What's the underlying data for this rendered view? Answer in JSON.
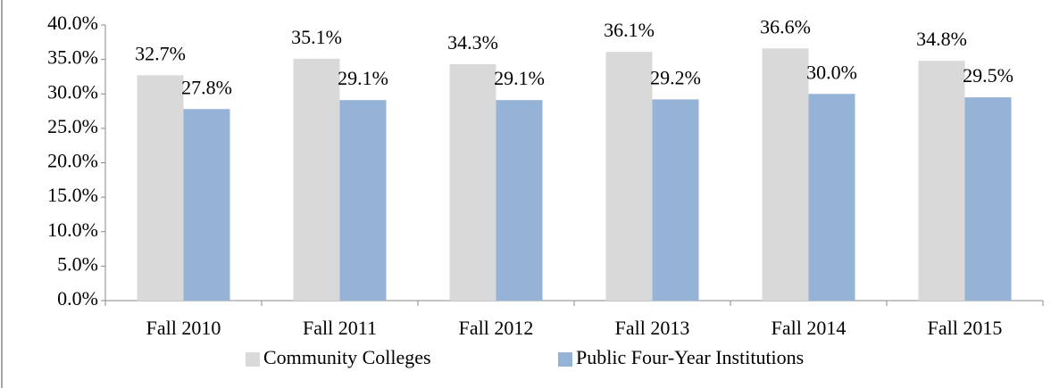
{
  "chart_data": {
    "type": "bar",
    "categories": [
      "Fall 2010",
      "Fall 2011",
      "Fall 2012",
      "Fall 2013",
      "Fall 2014",
      "Fall 2015"
    ],
    "series": [
      {
        "name": "Community Colleges",
        "color": "#d9d9d9",
        "values": [
          32.7,
          35.1,
          34.3,
          36.1,
          36.6,
          34.8
        ],
        "value_labels": [
          "32.7%",
          "35.1%",
          "34.3%",
          "36.1%",
          "36.6%",
          "34.8%"
        ]
      },
      {
        "name": "Public Four-Year Institutions",
        "color": "#95b3d7",
        "values": [
          27.8,
          29.1,
          29.1,
          29.2,
          30.0,
          29.5
        ],
        "value_labels": [
          "27.8%",
          "29.1%",
          "29.1%",
          "29.2%",
          "30.0%",
          "29.5%"
        ]
      }
    ],
    "ylim": [
      0,
      40
    ],
    "yticks": [
      {
        "value": 0,
        "label": "0.0%"
      },
      {
        "value": 5,
        "label": "5.0%"
      },
      {
        "value": 10,
        "label": "10.0%"
      },
      {
        "value": 15,
        "label": "15.0%"
      },
      {
        "value": 20,
        "label": "20.0%"
      },
      {
        "value": 25,
        "label": "25.0%"
      },
      {
        "value": 30,
        "label": "30.0%"
      },
      {
        "value": 35,
        "label": "35.0%"
      },
      {
        "value": 40,
        "label": "40.0%"
      }
    ],
    "grid": false,
    "legend": "bottom"
  }
}
